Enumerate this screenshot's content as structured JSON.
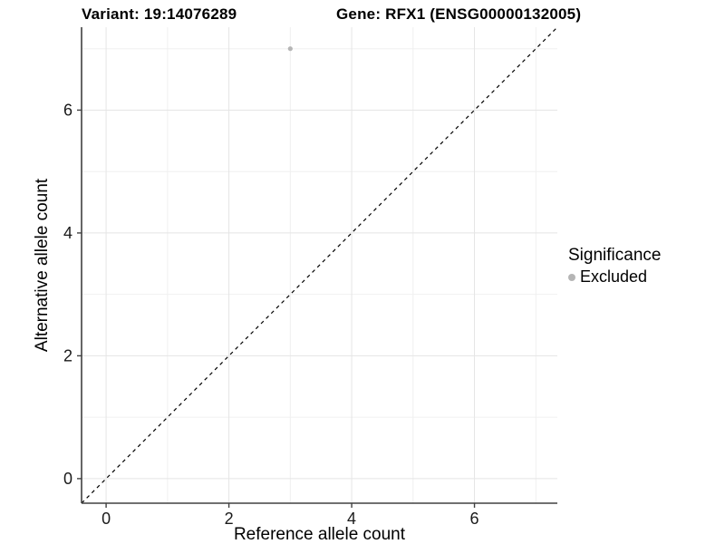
{
  "titles": {
    "variant": "Variant: 19:14076289",
    "gene": "Gene: RFX1 (ENSG00000132005)"
  },
  "legend": {
    "title": "Significance",
    "items": [
      {
        "label": "Excluded",
        "color": "#b5b5b5"
      }
    ]
  },
  "colors": {
    "background": "#ffffff",
    "axis_line": "#404040",
    "tick": "#404040",
    "tick_label": "#1a1a1a",
    "axis_title": "#000000",
    "grid_major": "#e5e5e5",
    "grid_minor": "#f0f0f0",
    "reference_line": "#000000",
    "point": "#b5b5b5"
  },
  "chart_data": {
    "type": "scatter",
    "title": "Variant: 19:14076289    Gene: RFX1 (ENSG00000132005)",
    "xlabel": "Reference allele count",
    "ylabel": "Alternative allele count",
    "xlim": [
      -0.4,
      7.35
    ],
    "ylim": [
      -0.4,
      7.35
    ],
    "xticks": [
      0,
      2,
      4,
      6
    ],
    "yticks": [
      0,
      2,
      4,
      6
    ],
    "minor_gridlines_x": [
      1,
      3,
      5,
      7
    ],
    "minor_gridlines_y": [
      1,
      3,
      5,
      7
    ],
    "grid": true,
    "legend_position": "right",
    "legend_title": "Significance",
    "series": [
      {
        "name": "Excluded",
        "color": "#b5b5b5",
        "points": [
          {
            "x": 3,
            "y": 7
          }
        ]
      }
    ],
    "reference_line": {
      "kind": "abline",
      "slope": 1,
      "intercept": 0,
      "style": "dashed"
    }
  }
}
